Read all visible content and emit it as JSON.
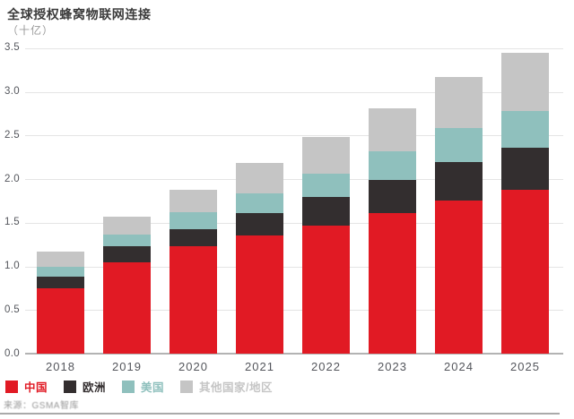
{
  "header": {
    "title": "全球授权蜂窝物联网连接",
    "subtitle": "（十亿）"
  },
  "chart_data": {
    "type": "bar",
    "stacked": true,
    "title": "全球授权蜂窝物联网连接",
    "unit_label": "（十亿）",
    "categories": [
      "2018",
      "2019",
      "2020",
      "2021",
      "2022",
      "2023",
      "2024",
      "2025"
    ],
    "series": [
      {
        "name": "中国",
        "color": "#e11a24",
        "values": [
          0.75,
          1.05,
          1.23,
          1.35,
          1.47,
          1.61,
          1.75,
          1.88
        ]
      },
      {
        "name": "欧洲",
        "color": "#332e2f",
        "values": [
          0.13,
          0.18,
          0.2,
          0.26,
          0.32,
          0.38,
          0.44,
          0.48
        ]
      },
      {
        "name": "美国",
        "color": "#8fc0bd",
        "values": [
          0.11,
          0.13,
          0.19,
          0.23,
          0.27,
          0.33,
          0.39,
          0.42
        ]
      },
      {
        "name": "其他国家/地区",
        "color": "#c5c5c5",
        "values": [
          0.18,
          0.21,
          0.26,
          0.34,
          0.42,
          0.49,
          0.59,
          0.67
        ]
      }
    ],
    "totals": [
      1.17,
      1.57,
      1.88,
      2.18,
      2.48,
      2.81,
      3.17,
      3.45
    ],
    "ylim": [
      0,
      3.5
    ],
    "yticks": [
      0.0,
      0.5,
      1.0,
      1.5,
      2.0,
      2.5,
      3.0,
      3.5
    ],
    "grid": true,
    "legend_position": "bottom"
  },
  "footer": {
    "source": "来源：GSMA智库"
  },
  "colors": {
    "china_red": "#e11a24",
    "europe_dark": "#332e2f",
    "us_teal": "#8fc0bd",
    "other_gray": "#c5c5c5",
    "gridline": "#e4e4e4",
    "axis_line": "#b3b3b3"
  }
}
